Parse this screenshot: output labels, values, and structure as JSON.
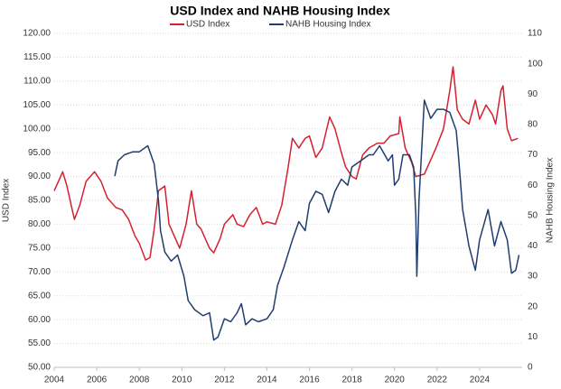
{
  "chart_data": {
    "type": "line",
    "title": "USD Index and NAHB Housing Index",
    "y_label": "USD Index",
    "y2_label": "NAHB Housing Index",
    "xlim": [
      2004,
      2026
    ],
    "xticks": [
      2004,
      2006,
      2008,
      2010,
      2012,
      2014,
      2016,
      2018,
      2020,
      2022,
      2024
    ],
    "ylim": [
      50,
      120
    ],
    "yticks": [
      {
        "value": 50,
        "label": "50.00"
      },
      {
        "value": 55,
        "label": "55.00"
      },
      {
        "value": 60,
        "label": "60.00"
      },
      {
        "value": 65,
        "label": "65.00"
      },
      {
        "value": 70,
        "label": "70.00"
      },
      {
        "value": 75,
        "label": "75.00"
      },
      {
        "value": 80,
        "label": "80.00"
      },
      {
        "value": 85,
        "label": "85.00"
      },
      {
        "value": 90,
        "label": "90.00"
      },
      {
        "value": 95,
        "label": "95.00"
      },
      {
        "value": 100,
        "label": "100.00"
      },
      {
        "value": 105,
        "label": "105.00"
      },
      {
        "value": 110,
        "label": "110.00"
      },
      {
        "value": 115,
        "label": "115.00"
      },
      {
        "value": 120,
        "label": "120.00"
      }
    ],
    "y2lim": [
      0,
      110
    ],
    "y2ticks": [
      0,
      10,
      20,
      30,
      40,
      50,
      60,
      70,
      80,
      90,
      100,
      110
    ],
    "grid": true,
    "series": [
      {
        "name": "USD Index",
        "color": "#d62031",
        "x": [
          2004.0,
          2004.2,
          2004.4,
          2004.6,
          2004.8,
          2004.95,
          2005.2,
          2005.5,
          2005.9,
          2006.2,
          2006.5,
          2006.9,
          2007.2,
          2007.5,
          2007.8,
          2008.0,
          2008.3,
          2008.5,
          2008.7,
          2008.9,
          2009.2,
          2009.4,
          2009.7,
          2009.9,
          2010.2,
          2010.45,
          2010.7,
          2010.9,
          2011.3,
          2011.5,
          2011.8,
          2012.0,
          2012.4,
          2012.6,
          2012.9,
          2013.2,
          2013.5,
          2013.8,
          2014.0,
          2014.4,
          2014.7,
          2015.0,
          2015.2,
          2015.5,
          2015.8,
          2016.0,
          2016.3,
          2016.6,
          2016.95,
          2017.2,
          2017.5,
          2017.7,
          2018.0,
          2018.2,
          2018.5,
          2018.8,
          2019.2,
          2019.5,
          2019.8,
          2020.2,
          2020.25,
          2020.5,
          2020.8,
          2021.0,
          2021.4,
          2021.7,
          2021.95,
          2022.3,
          2022.6,
          2022.75,
          2022.95,
          2023.2,
          2023.5,
          2023.8,
          2024.0,
          2024.3,
          2024.6,
          2024.75,
          2025.0,
          2025.1,
          2025.3,
          2025.5,
          2025.8
        ],
        "values": [
          87,
          89,
          91,
          88,
          84,
          81,
          84,
          89,
          91,
          89,
          85.5,
          83.5,
          83,
          81,
          77.5,
          76,
          72.5,
          73,
          79,
          87,
          88,
          80,
          77,
          75,
          80,
          87,
          80,
          79,
          75,
          74,
          77,
          80,
          82,
          80,
          79.5,
          82,
          83.5,
          80,
          80.5,
          80,
          84,
          92,
          98,
          96,
          98,
          98.5,
          94,
          96,
          102.5,
          100,
          95,
          92,
          90,
          89.5,
          94.5,
          96,
          97,
          97,
          98.5,
          99,
          102.5,
          96,
          93,
          90,
          90.5,
          93.5,
          96,
          100,
          108,
          113,
          104,
          102,
          101,
          106,
          102,
          105,
          103,
          101,
          108,
          109,
          100,
          97.5,
          98
        ]
      },
      {
        "name": "NAHB Housing Index",
        "color": "#1f3d6e",
        "axis": "y2",
        "x": [
          2006.85,
          2007.0,
          2007.3,
          2007.7,
          2008.0,
          2008.4,
          2008.7,
          2008.9,
          2009.0,
          2009.2,
          2009.5,
          2009.8,
          2010.1,
          2010.3,
          2010.6,
          2011.0,
          2011.3,
          2011.5,
          2011.7,
          2012.0,
          2012.3,
          2012.6,
          2012.8,
          2013.0,
          2013.3,
          2013.6,
          2014.0,
          2014.3,
          2014.5,
          2014.8,
          2015.2,
          2015.5,
          2015.8,
          2016.0,
          2016.3,
          2016.6,
          2016.9,
          2017.2,
          2017.5,
          2017.8,
          2018.0,
          2018.4,
          2018.8,
          2019.0,
          2019.3,
          2019.7,
          2019.9,
          2020.0,
          2020.2,
          2020.4,
          2020.7,
          2020.9,
          2021.0,
          2021.05,
          2021.15,
          2021.4,
          2021.7,
          2022.0,
          2022.3,
          2022.6,
          2022.9,
          2023.0,
          2023.2,
          2023.5,
          2023.8,
          2024.0,
          2024.2,
          2024.4,
          2024.7,
          2025.0,
          2025.3,
          2025.5,
          2025.7,
          2025.85
        ],
        "values": [
          63,
          68,
          70,
          71,
          71,
          73,
          67,
          55,
          45,
          38,
          35,
          37,
          30,
          22,
          19,
          17,
          18,
          9,
          10,
          16,
          15,
          18,
          21,
          14,
          16,
          15,
          16,
          19,
          27,
          33,
          42,
          48,
          45,
          54,
          58,
          57,
          51,
          58,
          62,
          60,
          66,
          68,
          70,
          70,
          73,
          68,
          70,
          60,
          62,
          70,
          70,
          66,
          50,
          30,
          55,
          88,
          82,
          85,
          85,
          84,
          78,
          70,
          52,
          40,
          32,
          42,
          47,
          52,
          40,
          48,
          42,
          31,
          32,
          37
        ]
      }
    ]
  }
}
